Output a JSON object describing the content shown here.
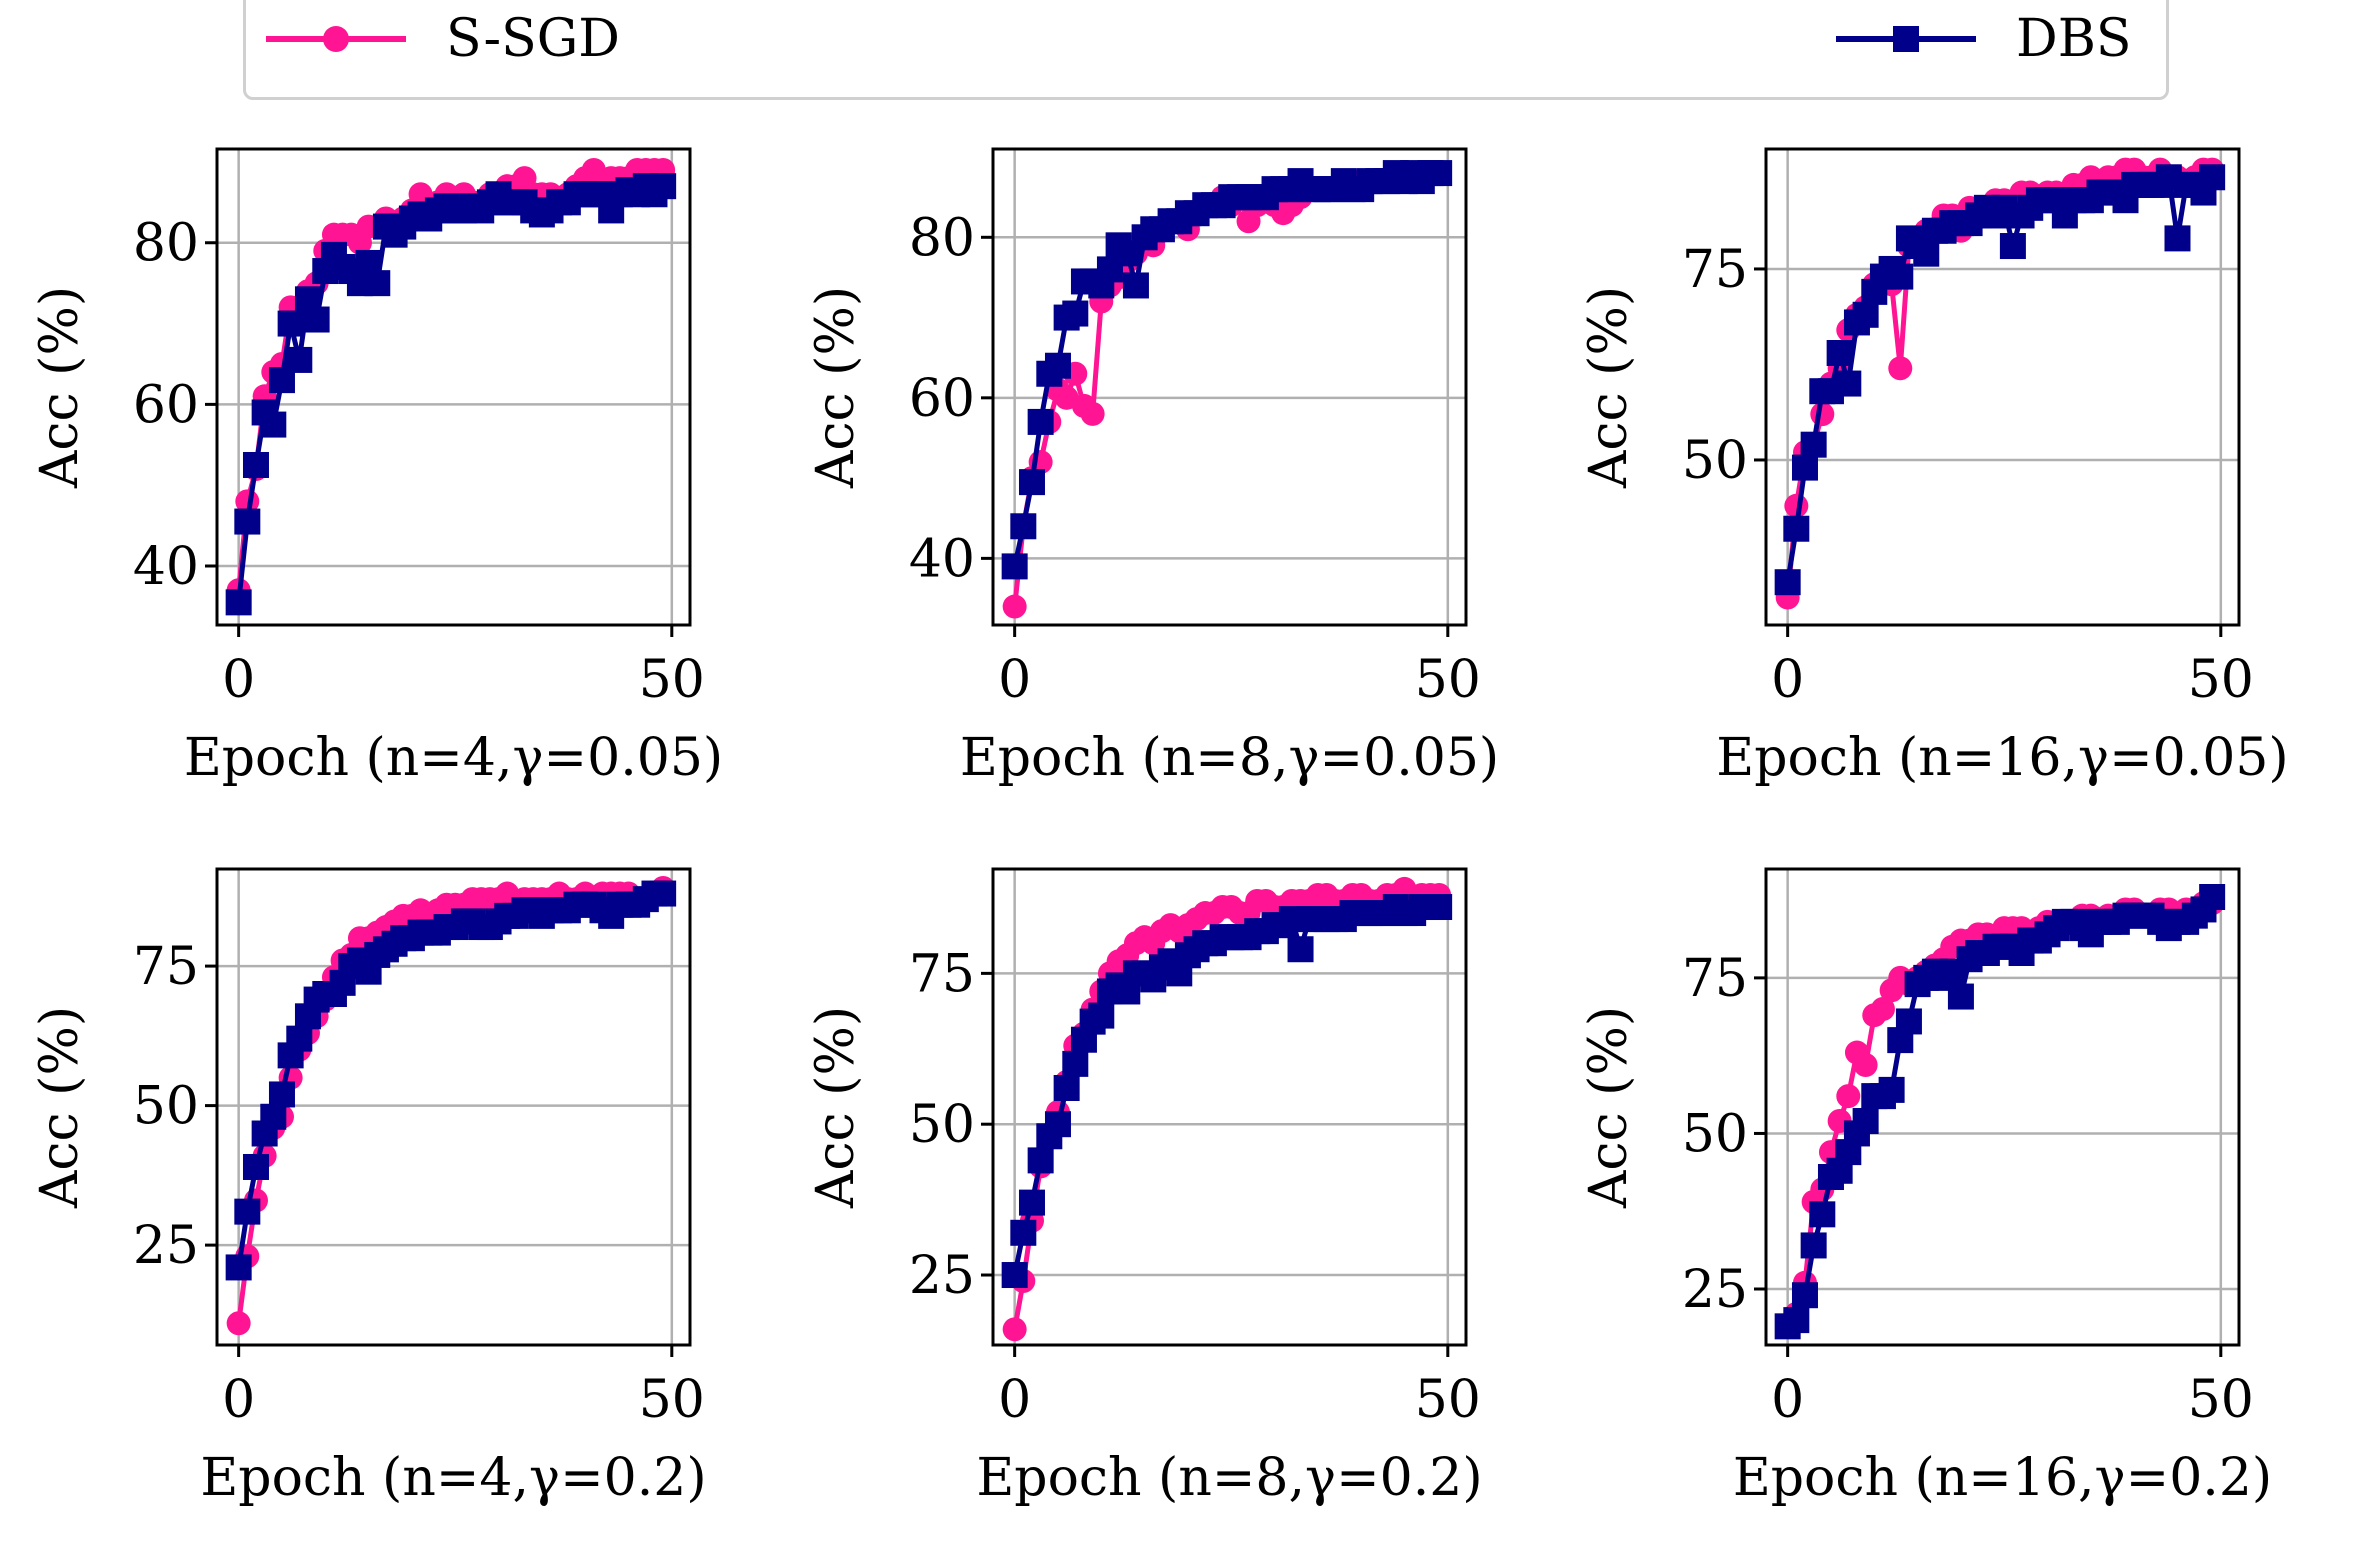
{
  "colors": {
    "S-SGD": "#ff1493",
    "DBS": "#00008b",
    "grid": "#b0b0b0"
  },
  "legend": {
    "placement": "top",
    "entries": [
      {
        "name": "S-SGD",
        "marker": "circle",
        "color": "#ff1493"
      },
      {
        "name": "DBS",
        "marker": "square",
        "color": "#00008b"
      }
    ]
  },
  "chart_data": [
    {
      "type": "line",
      "xlabel": "Epoch (n=4,γ=0.05)",
      "ylabel": "Acc (%)",
      "xlim": [
        -2.5,
        52.1
      ],
      "ylim": [
        32.7,
        91.6
      ],
      "xticks": [
        0,
        50
      ],
      "yticks": [
        40,
        60,
        80
      ],
      "grid": true,
      "series": [
        {
          "name": "S-SGD",
          "values": [
            37,
            48,
            52,
            61,
            64,
            65,
            72,
            72,
            74,
            75,
            79,
            81,
            81,
            81,
            80,
            82,
            82,
            83,
            82,
            83,
            84,
            86,
            84,
            85,
            86,
            85,
            86,
            85,
            85,
            86,
            86,
            87,
            87,
            88,
            86,
            86,
            86,
            85,
            86,
            87,
            88,
            89,
            87,
            88,
            88,
            88,
            89,
            89,
            89,
            89
          ]
        },
        {
          "name": "DBS",
          "values": [
            35.5,
            45.5,
            52.5,
            59,
            57.5,
            63,
            70,
            65.5,
            73,
            70.5,
            76.5,
            78.5,
            77,
            76.5,
            75,
            77.5,
            75,
            82,
            81,
            82,
            83,
            83.5,
            83,
            84,
            84.5,
            84,
            84,
            84.5,
            84,
            85,
            86,
            85,
            85,
            85,
            84,
            83.5,
            84,
            85,
            85,
            86,
            86,
            86,
            86,
            84,
            86,
            86.5,
            86,
            87,
            86,
            87
          ]
        }
      ]
    },
    {
      "type": "line",
      "xlabel": "Epoch (n=8,γ=0.05)",
      "ylabel": "Acc (%)",
      "xlim": [
        -2.5,
        52.1
      ],
      "ylim": [
        31.7,
        91
      ],
      "xticks": [
        0,
        50
      ],
      "yticks": [
        40,
        60,
        80
      ],
      "grid": true,
      "series": [
        {
          "name": "S-SGD",
          "values": [
            34,
            44,
            50,
            52,
            57,
            61,
            60,
            63,
            59,
            58,
            72,
            74,
            75,
            77,
            78,
            80,
            79,
            81,
            82,
            82,
            81,
            83,
            84,
            84,
            85,
            84,
            85,
            82,
            84,
            85,
            84,
            83,
            84,
            85,
            86,
            86,
            86,
            86,
            87,
            86,
            87,
            87,
            87,
            87,
            88,
            87,
            88,
            87,
            88,
            88
          ]
        },
        {
          "name": "DBS",
          "values": [
            39,
            44,
            49.5,
            57,
            63,
            64,
            70,
            70.5,
            74.5,
            74.5,
            74,
            76,
            79,
            78,
            74,
            80,
            81,
            81,
            82,
            82,
            83,
            83,
            84,
            84,
            84,
            85,
            85,
            85,
            85,
            85,
            86,
            86,
            86,
            87,
            86,
            86,
            86,
            86,
            87,
            86,
            86,
            87,
            87,
            87,
            88,
            87,
            88,
            87,
            88,
            88
          ]
        }
      ]
    },
    {
      "type": "line",
      "xlabel": "Epoch (n=16,γ=0.05)",
      "ylabel": "Acc (%)",
      "xlim": [
        -2.5,
        52.1
      ],
      "ylim": [
        28.4,
        90.7
      ],
      "xticks": [
        0,
        50
      ],
      "yticks": [
        50,
        75
      ],
      "grid": true,
      "series": [
        {
          "name": "S-SGD",
          "values": [
            32,
            44,
            51,
            52,
            56,
            60,
            62,
            67,
            69,
            70,
            73,
            74,
            73,
            62,
            78,
            78,
            80,
            80,
            82,
            82,
            80,
            83,
            83,
            83,
            84,
            84,
            83,
            85,
            85,
            84,
            85,
            85,
            84,
            86,
            86,
            87,
            86,
            87,
            87,
            88,
            88,
            87,
            87,
            88,
            87,
            87,
            86,
            87,
            88,
            88
          ]
        },
        {
          "name": "DBS",
          "values": [
            34,
            41,
            49,
            52,
            59,
            59,
            64,
            60,
            68,
            69,
            72,
            74,
            75,
            74,
            79,
            78,
            77,
            80,
            80,
            81,
            81,
            81,
            82,
            83,
            82,
            83,
            78,
            82,
            83,
            84,
            84,
            84,
            82,
            84,
            84,
            84,
            85,
            85,
            85,
            84,
            86,
            86,
            86,
            86,
            87,
            79,
            86,
            86,
            85,
            87
          ]
        }
      ]
    },
    {
      "type": "line",
      "xlabel": "Epoch (n=4,γ=0.2)",
      "ylabel": "Acc (%)",
      "xlim": [
        -2.5,
        52.1
      ],
      "ylim": [
        7.1,
        92.4
      ],
      "xticks": [
        0,
        50
      ],
      "yticks": [
        25,
        50,
        75
      ],
      "grid": true,
      "series": [
        {
          "name": "S-SGD",
          "values": [
            11,
            23,
            33,
            41,
            46,
            48,
            55,
            60,
            63,
            66,
            69,
            73,
            76,
            77,
            80,
            80,
            81,
            82,
            83,
            84,
            84,
            85,
            84,
            85,
            86,
            86,
            86,
            87,
            87,
            87,
            87,
            88,
            86,
            87,
            87,
            87,
            87,
            88,
            87,
            87,
            88,
            87,
            88,
            88,
            88,
            88,
            87,
            87,
            88,
            89
          ]
        },
        {
          "name": "DBS",
          "values": [
            21,
            31,
            39,
            45,
            48,
            52,
            59,
            62,
            66,
            69,
            70,
            70,
            72,
            75,
            76,
            74,
            77,
            78,
            79,
            80,
            80,
            81,
            81,
            81,
            82,
            82,
            83,
            83,
            82,
            82,
            83,
            84,
            84,
            85,
            85,
            84,
            85,
            85,
            85,
            86,
            86,
            86,
            85,
            84,
            86,
            86,
            86,
            87,
            88,
            88
          ]
        }
      ]
    },
    {
      "type": "line",
      "xlabel": "Epoch (n=8,γ=0.2)",
      "ylabel": "Acc (%)",
      "xlim": [
        -2.5,
        52.1
      ],
      "ylim": [
        13.4,
        92.3
      ],
      "xticks": [
        0,
        50
      ],
      "yticks": [
        25,
        50,
        75
      ],
      "grid": true,
      "series": [
        {
          "name": "S-SGD",
          "values": [
            16,
            24,
            34,
            43,
            48,
            52,
            57,
            63,
            65,
            69,
            72,
            75,
            77,
            78,
            80,
            81,
            80,
            82,
            83,
            82,
            83,
            84,
            85,
            85,
            86,
            86,
            85,
            85,
            87,
            87,
            86,
            86,
            87,
            87,
            87,
            88,
            88,
            87,
            87,
            88,
            88,
            87,
            87,
            88,
            88,
            89,
            87,
            88,
            88,
            88
          ]
        },
        {
          "name": "DBS",
          "values": [
            25,
            32,
            37,
            44,
            48,
            50,
            56,
            60,
            64,
            67,
            68,
            72,
            73,
            72,
            75,
            75,
            74,
            76,
            77,
            75,
            78,
            79,
            80,
            80,
            81,
            81,
            81,
            81,
            82,
            82,
            83,
            83,
            84,
            79,
            84,
            84,
            84,
            84,
            84,
            85,
            85,
            85,
            85,
            85,
            86,
            85,
            85,
            86,
            86,
            86
          ]
        }
      ]
    },
    {
      "type": "line",
      "xlabel": "Epoch (n=16,γ=0.2)",
      "ylabel": "Acc (%)",
      "xlim": [
        -2.5,
        52.1
      ],
      "ylim": [
        16,
        92.5
      ],
      "xticks": [
        0,
        50
      ],
      "yticks": [
        25,
        50,
        75
      ],
      "grid": true,
      "series": [
        {
          "name": "S-SGD",
          "values": [
            19,
            21,
            26,
            39,
            41,
            47,
            52,
            56,
            63,
            61,
            69,
            70,
            73,
            75,
            74,
            75,
            76,
            77,
            78,
            80,
            81,
            81,
            82,
            82,
            81,
            83,
            83,
            83,
            82,
            83,
            84,
            84,
            84,
            84,
            85,
            85,
            84,
            85,
            85,
            86,
            86,
            85,
            85,
            86,
            86,
            85,
            86,
            86,
            87,
            87
          ]
        },
        {
          "name": "DBS",
          "values": [
            19,
            20,
            24,
            32,
            37,
            43,
            44,
            47,
            50,
            52,
            56,
            56,
            57,
            65,
            68,
            74,
            75,
            76,
            75,
            76,
            72,
            78,
            79,
            79,
            80,
            80,
            80,
            79,
            81,
            81,
            82,
            83,
            84,
            84,
            83,
            82,
            84,
            84,
            84,
            85,
            85,
            85,
            85,
            84,
            83,
            84,
            84,
            85,
            86,
            88
          ]
        }
      ]
    }
  ]
}
